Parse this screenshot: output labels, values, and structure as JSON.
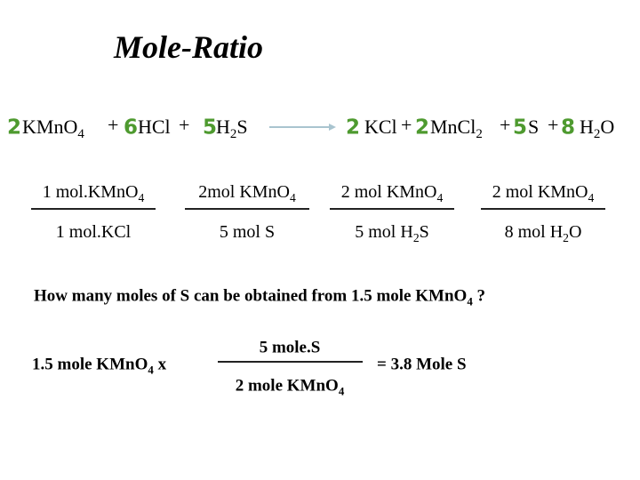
{
  "title": "Mole-Ratio",
  "equation": {
    "reactants": [
      {
        "coefficient": "2",
        "formula": [
          "KMnO",
          "4"
        ]
      },
      {
        "coefficient": "6",
        "formula": [
          "HCl"
        ]
      },
      {
        "coefficient": "5",
        "formula": [
          "H",
          "2",
          "S"
        ]
      }
    ],
    "plus": "+",
    "products": [
      {
        "coefficient": "2",
        "formula": [
          "KCl"
        ]
      },
      {
        "coefficient": "2",
        "formula": [
          "MnCl",
          "2"
        ]
      },
      {
        "coefficient": "5",
        "formula": [
          "S"
        ]
      },
      {
        "coefficient": "8",
        "formula": [
          "H",
          "2",
          "O"
        ]
      }
    ]
  },
  "ratios": [
    {
      "numerator": [
        "1 mol.KMnO",
        "4"
      ],
      "denominator": [
        "1 mol.KCl"
      ]
    },
    {
      "numerator": [
        "2mol KMnO",
        "4"
      ],
      "denominator": [
        "5 mol S"
      ]
    },
    {
      "numerator": [
        "2 mol KMnO",
        "4"
      ],
      "denominator": [
        "5 mol H",
        "2",
        "S"
      ]
    },
    {
      "numerator": [
        "2 mol KMnO",
        "4"
      ],
      "denominator": [
        "8 mol H",
        "2",
        "O"
      ]
    }
  ],
  "question": [
    "How many moles of S can be obtained from 1.5 mole KMnO",
    "4",
    " ?"
  ],
  "calculation": {
    "given": [
      "1.5 mole KMnO",
      "4",
      " x"
    ],
    "numerator": [
      "5 mole.S"
    ],
    "denominator": [
      "2 mole KMnO",
      "4"
    ],
    "result": "= 3.8 Mole S"
  }
}
